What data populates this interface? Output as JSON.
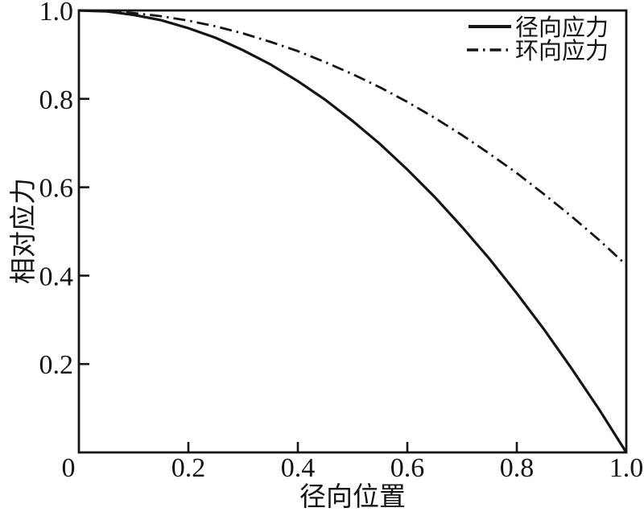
{
  "figure": {
    "background": "#ffffff",
    "ink_color": "#141414"
  },
  "chart_data": {
    "type": "line",
    "title": "",
    "xlabel": "径向位置",
    "ylabel": "相对应力",
    "xlim": [
      0,
      1.0
    ],
    "ylim": [
      0,
      1.0
    ],
    "grid": false,
    "legend_position": "top-right",
    "x_tick_values": [
      0,
      0.2,
      0.4,
      0.6,
      0.8,
      1.0
    ],
    "x_tick_labels": [
      "0",
      "0.2",
      "0.4",
      "0.6",
      "0.8",
      "1.0"
    ],
    "y_tick_values": [
      0,
      0.2,
      0.4,
      0.6,
      0.8,
      1.0
    ],
    "y_tick_labels": [
      "0",
      "0.2",
      "0.4",
      "0.6",
      "0.8",
      "1.0"
    ],
    "x": [
      0,
      0.05,
      0.1,
      0.15,
      0.2,
      0.25,
      0.3,
      0.35,
      0.4,
      0.45,
      0.5,
      0.55,
      0.6,
      0.65,
      0.7,
      0.75,
      0.8,
      0.85,
      0.9,
      0.95,
      1.0
    ],
    "series": [
      {
        "name": "径向应力",
        "style": "solid",
        "values": [
          1.0,
          0.998,
          0.99,
          0.978,
          0.96,
          0.938,
          0.91,
          0.878,
          0.84,
          0.798,
          0.75,
          0.698,
          0.64,
          0.578,
          0.51,
          0.438,
          0.36,
          0.278,
          0.19,
          0.098,
          0.0
        ]
      },
      {
        "name": "环向应力",
        "style": "dash-dot",
        "values": [
          1.0,
          0.999,
          0.994,
          0.987,
          0.977,
          0.964,
          0.948,
          0.929,
          0.908,
          0.883,
          0.856,
          0.826,
          0.793,
          0.757,
          0.718,
          0.676,
          0.632,
          0.584,
          0.534,
          0.481,
          0.424
        ]
      }
    ]
  }
}
